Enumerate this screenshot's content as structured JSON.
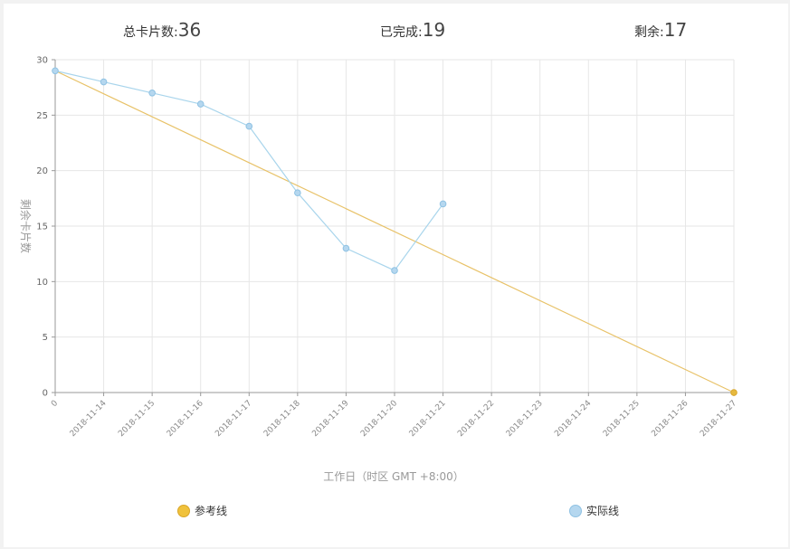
{
  "summary": {
    "total_label": "总卡片数:",
    "total_value": "36",
    "done_label": "已完成:",
    "done_value": "19",
    "remaining_label": "剩余:",
    "remaining_value": "17"
  },
  "chart_data": {
    "type": "line",
    "xlabel": "工作日（时区 GMT +8:00）",
    "ylabel": "剩余卡片数",
    "ylim": [
      0,
      30
    ],
    "yticks": [
      0,
      5,
      10,
      15,
      20,
      25,
      30
    ],
    "grid": true,
    "legend_placement": "bottom",
    "categories": [
      "0",
      "2018-11-14",
      "2018-11-15",
      "2018-11-16",
      "2018-11-17",
      "2018-11-18",
      "2018-11-19",
      "2018-11-20",
      "2018-11-21",
      "2018-11-22",
      "2018-11-23",
      "2018-11-24",
      "2018-11-25",
      "2018-11-26",
      "2018-11-27"
    ],
    "series": [
      {
        "name": "参考线",
        "color": "#e8c268",
        "points": [
          {
            "x": "0",
            "y": 29
          },
          {
            "x": "2018-11-27",
            "y": 0
          }
        ]
      },
      {
        "name": "实际线",
        "color": "#a9d5ec",
        "points": [
          {
            "x": "0",
            "y": 29
          },
          {
            "x": "2018-11-14",
            "y": 28
          },
          {
            "x": "2018-11-15",
            "y": 27
          },
          {
            "x": "2018-11-16",
            "y": 26
          },
          {
            "x": "2018-11-17",
            "y": 24
          },
          {
            "x": "2018-11-18",
            "y": 18
          },
          {
            "x": "2018-11-19",
            "y": 13
          },
          {
            "x": "2018-11-20",
            "y": 11
          },
          {
            "x": "2018-11-21",
            "y": 17
          }
        ]
      }
    ]
  }
}
